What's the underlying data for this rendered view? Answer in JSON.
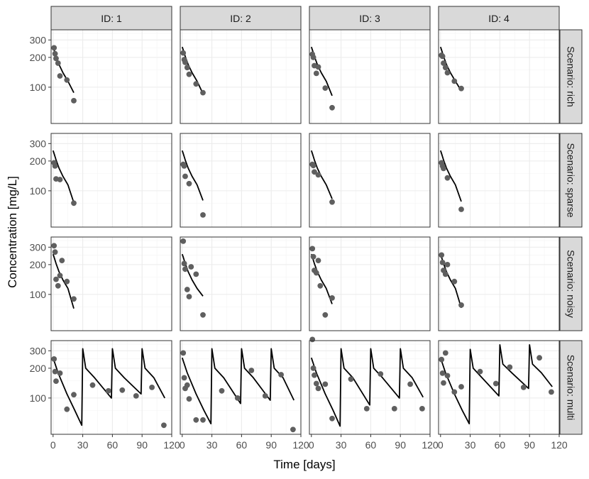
{
  "chart_data": {
    "type": "scatter",
    "title": "",
    "xlabel": "Time [days]",
    "ylabel": "Concentration [mg/L]",
    "x_scale": "linear",
    "y_scale": "log",
    "x_range": [
      -2,
      120
    ],
    "y_range": [
      43,
      380
    ],
    "x_ticks": [
      0,
      30,
      60,
      90,
      120
    ],
    "y_ticks": [
      100,
      200,
      300
    ],
    "grid": true,
    "legend": "none",
    "facet_columns": [
      "ID: 1",
      "ID: 2",
      "ID: 3",
      "ID: 4"
    ],
    "facet_rows": [
      "Scenario: rich",
      "Scenario: sparse",
      "Scenario: noisy",
      "Scenario: multi"
    ],
    "panels": [
      {
        "row": 0,
        "col": 0,
        "points": [
          [
            1,
            250
          ],
          [
            2,
            218
          ],
          [
            3,
            195
          ],
          [
            5,
            175
          ],
          [
            7,
            130
          ],
          [
            14,
            118
          ],
          [
            21,
            73
          ]
        ],
        "line": [
          [
            0,
            255
          ],
          [
            1,
            238
          ],
          [
            3,
            205
          ],
          [
            6,
            170
          ],
          [
            10,
            140
          ],
          [
            15,
            115
          ],
          [
            21,
            88
          ]
        ]
      },
      {
        "row": 0,
        "col": 1,
        "points": [
          [
            1,
            222
          ],
          [
            2,
            190
          ],
          [
            3,
            178
          ],
          [
            5,
            158
          ],
          [
            7,
            135
          ],
          [
            14,
            108
          ],
          [
            21,
            88
          ]
        ],
        "line": [
          [
            0,
            255
          ],
          [
            1,
            238
          ],
          [
            3,
            205
          ],
          [
            6,
            170
          ],
          [
            10,
            140
          ],
          [
            15,
            115
          ],
          [
            21,
            86
          ]
        ]
      },
      {
        "row": 0,
        "col": 2,
        "points": [
          [
            1,
            215
          ],
          [
            2,
            200
          ],
          [
            3,
            165
          ],
          [
            5,
            138
          ],
          [
            7,
            160
          ],
          [
            14,
            98
          ],
          [
            21,
            62
          ]
        ],
        "line": [
          [
            0,
            255
          ],
          [
            1,
            238
          ],
          [
            3,
            205
          ],
          [
            6,
            170
          ],
          [
            10,
            140
          ],
          [
            15,
            115
          ],
          [
            21,
            82
          ]
        ]
      },
      {
        "row": 0,
        "col": 3,
        "points": [
          [
            1,
            210
          ],
          [
            2,
            205
          ],
          [
            3,
            175
          ],
          [
            5,
            158
          ],
          [
            7,
            140
          ],
          [
            14,
            115
          ],
          [
            21,
            97
          ]
        ],
        "line": [
          [
            0,
            255
          ],
          [
            1,
            238
          ],
          [
            3,
            205
          ],
          [
            6,
            170
          ],
          [
            10,
            140
          ],
          [
            15,
            115
          ],
          [
            21,
            92
          ]
        ]
      },
      {
        "row": 1,
        "col": 0,
        "points": [
          [
            1,
            192
          ],
          [
            2,
            178
          ],
          [
            3,
            132
          ],
          [
            7,
            130
          ],
          [
            21,
            75
          ]
        ],
        "line": [
          [
            0,
            255
          ],
          [
            1,
            238
          ],
          [
            3,
            205
          ],
          [
            6,
            170
          ],
          [
            10,
            140
          ],
          [
            15,
            115
          ],
          [
            21,
            76
          ]
        ]
      },
      {
        "row": 1,
        "col": 1,
        "points": [
          [
            1,
            185
          ],
          [
            2,
            178
          ],
          [
            3,
            140
          ],
          [
            7,
            118
          ],
          [
            21,
            57
          ]
        ],
        "line": [
          [
            0,
            255
          ],
          [
            1,
            238
          ],
          [
            3,
            205
          ],
          [
            6,
            170
          ],
          [
            10,
            140
          ],
          [
            15,
            115
          ],
          [
            21,
            80
          ]
        ]
      },
      {
        "row": 1,
        "col": 2,
        "points": [
          [
            1,
            185
          ],
          [
            2,
            180
          ],
          [
            3,
            155
          ],
          [
            7,
            145
          ],
          [
            21,
            77
          ]
        ],
        "line": [
          [
            0,
            255
          ],
          [
            1,
            238
          ],
          [
            3,
            205
          ],
          [
            6,
            170
          ],
          [
            10,
            140
          ],
          [
            15,
            115
          ],
          [
            21,
            83
          ]
        ]
      },
      {
        "row": 1,
        "col": 3,
        "points": [
          [
            1,
            192
          ],
          [
            2,
            178
          ],
          [
            3,
            168
          ],
          [
            7,
            135
          ],
          [
            21,
            65
          ]
        ],
        "line": [
          [
            0,
            255
          ],
          [
            1,
            238
          ],
          [
            3,
            205
          ],
          [
            6,
            170
          ],
          [
            10,
            140
          ],
          [
            15,
            115
          ],
          [
            21,
            78
          ]
        ]
      },
      {
        "row": 2,
        "col": 0,
        "points": [
          [
            1,
            310
          ],
          [
            2,
            268
          ],
          [
            3,
            142
          ],
          [
            5,
            122
          ],
          [
            7,
            155
          ],
          [
            9,
            220
          ],
          [
            14,
            135
          ],
          [
            21,
            90
          ]
        ],
        "line": [
          [
            0,
            255
          ],
          [
            1,
            238
          ],
          [
            3,
            205
          ],
          [
            6,
            170
          ],
          [
            10,
            140
          ],
          [
            15,
            115
          ],
          [
            21,
            72
          ]
        ]
      },
      {
        "row": 2,
        "col": 1,
        "points": [
          [
            1,
            345
          ],
          [
            2,
            205
          ],
          [
            3,
            180
          ],
          [
            5,
            112
          ],
          [
            7,
            95
          ],
          [
            9,
            190
          ],
          [
            14,
            160
          ],
          [
            21,
            62
          ]
        ],
        "line": [
          [
            0,
            255
          ],
          [
            1,
            238
          ],
          [
            3,
            205
          ],
          [
            6,
            170
          ],
          [
            10,
            140
          ],
          [
            15,
            115
          ],
          [
            21,
            96
          ]
        ]
      },
      {
        "row": 2,
        "col": 2,
        "points": [
          [
            1,
            290
          ],
          [
            2,
            240
          ],
          [
            3,
            175
          ],
          [
            5,
            165
          ],
          [
            7,
            220
          ],
          [
            9,
            122
          ],
          [
            14,
            62
          ],
          [
            21,
            92
          ]
        ],
        "line": [
          [
            0,
            255
          ],
          [
            1,
            238
          ],
          [
            3,
            205
          ],
          [
            6,
            170
          ],
          [
            10,
            140
          ],
          [
            15,
            115
          ],
          [
            21,
            80
          ]
        ]
      },
      {
        "row": 2,
        "col": 3,
        "points": [
          [
            1,
            250
          ],
          [
            2,
            210
          ],
          [
            3,
            175
          ],
          [
            5,
            160
          ],
          [
            7,
            200
          ],
          [
            14,
            135
          ],
          [
            21,
            78
          ]
        ],
        "line": [
          [
            0,
            255
          ],
          [
            1,
            238
          ],
          [
            3,
            205
          ],
          [
            6,
            170
          ],
          [
            10,
            140
          ],
          [
            15,
            115
          ],
          [
            21,
            73
          ]
        ]
      },
      {
        "row": 3,
        "col": 0,
        "points": [
          [
            1,
            248
          ],
          [
            2,
            185
          ],
          [
            3,
            148
          ],
          [
            7,
            178
          ],
          [
            14,
            77
          ],
          [
            21,
            108
          ],
          [
            40,
            135
          ],
          [
            56,
            118
          ],
          [
            70,
            120
          ],
          [
            84,
            105
          ],
          [
            100,
            128
          ],
          [
            112,
            53
          ]
        ],
        "line": [
          [
            0,
            255
          ],
          [
            5,
            180
          ],
          [
            14,
            110
          ],
          [
            22,
            75
          ],
          [
            29,
            53
          ],
          [
            30,
            315
          ],
          [
            33,
            200
          ],
          [
            42,
            160
          ],
          [
            59,
            100
          ],
          [
            60,
            315
          ],
          [
            63,
            200
          ],
          [
            72,
            160
          ],
          [
            89,
            110
          ],
          [
            90,
            315
          ],
          [
            93,
            200
          ],
          [
            102,
            160
          ],
          [
            113,
            100
          ]
        ]
      },
      {
        "row": 3,
        "col": 1,
        "points": [
          [
            1,
            285
          ],
          [
            2,
            160
          ],
          [
            3,
            125
          ],
          [
            5,
            135
          ],
          [
            7,
            98
          ],
          [
            14,
            60
          ],
          [
            21,
            60
          ],
          [
            40,
            118
          ],
          [
            56,
            100
          ],
          [
            70,
            190
          ],
          [
            84,
            105
          ],
          [
            100,
            172
          ],
          [
            112,
            48
          ]
        ],
        "line": [
          [
            0,
            255
          ],
          [
            5,
            180
          ],
          [
            14,
            110
          ],
          [
            22,
            75
          ],
          [
            29,
            55
          ],
          [
            30,
            315
          ],
          [
            33,
            200
          ],
          [
            42,
            160
          ],
          [
            59,
            88
          ],
          [
            60,
            315
          ],
          [
            63,
            200
          ],
          [
            72,
            160
          ],
          [
            89,
            95
          ],
          [
            90,
            315
          ],
          [
            93,
            200
          ],
          [
            102,
            160
          ],
          [
            113,
            95
          ]
        ]
      },
      {
        "row": 3,
        "col": 2,
        "points": [
          [
            1,
            390
          ],
          [
            2,
            200
          ],
          [
            3,
            170
          ],
          [
            5,
            140
          ],
          [
            7,
            125
          ],
          [
            14,
            138
          ],
          [
            21,
            62
          ],
          [
            40,
            155
          ],
          [
            56,
            78
          ],
          [
            70,
            175
          ],
          [
            84,
            78
          ],
          [
            100,
            138
          ],
          [
            112,
            78
          ]
        ],
        "line": [
          [
            0,
            255
          ],
          [
            5,
            180
          ],
          [
            14,
            110
          ],
          [
            22,
            75
          ],
          [
            29,
            52
          ],
          [
            30,
            315
          ],
          [
            33,
            200
          ],
          [
            42,
            160
          ],
          [
            59,
            85
          ],
          [
            60,
            315
          ],
          [
            63,
            200
          ],
          [
            72,
            160
          ],
          [
            89,
            100
          ],
          [
            90,
            315
          ],
          [
            93,
            200
          ],
          [
            102,
            160
          ],
          [
            113,
            102
          ]
        ]
      },
      {
        "row": 3,
        "col": 3,
        "points": [
          [
            1,
            245
          ],
          [
            2,
            178
          ],
          [
            3,
            142
          ],
          [
            5,
            285
          ],
          [
            7,
            168
          ],
          [
            14,
            115
          ],
          [
            21,
            130
          ],
          [
            40,
            185
          ],
          [
            56,
            140
          ],
          [
            70,
            205
          ],
          [
            84,
            128
          ],
          [
            100,
            255
          ],
          [
            112,
            115
          ]
        ],
        "line": [
          [
            0,
            255
          ],
          [
            5,
            180
          ],
          [
            14,
            110
          ],
          [
            22,
            75
          ],
          [
            29,
            55
          ],
          [
            30,
            310
          ],
          [
            33,
            200
          ],
          [
            42,
            160
          ],
          [
            59,
            105
          ],
          [
            60,
            345
          ],
          [
            63,
            220
          ],
          [
            72,
            180
          ],
          [
            89,
            125
          ],
          [
            90,
            345
          ],
          [
            93,
            220
          ],
          [
            102,
            180
          ],
          [
            113,
            130
          ]
        ]
      }
    ]
  },
  "colors": {
    "point": "#5f5f5f",
    "line": "#000000",
    "strip_bg": "#d9d9d9",
    "grid_major": "#ebebeb",
    "grid_minor": "#f5f5f5",
    "border": "#333333"
  }
}
